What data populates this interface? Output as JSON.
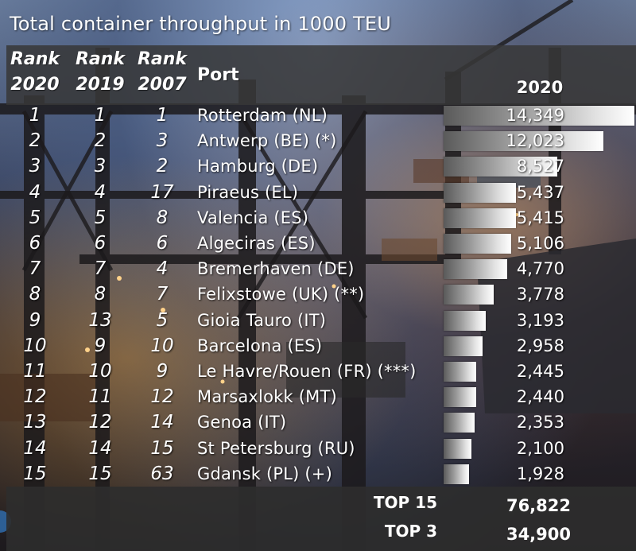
{
  "chart_data": {
    "type": "bar",
    "title": "Total container throughput in 1000 TEU",
    "columns": {
      "rank_2020": "Rank 2020",
      "rank_2019": "Rank 2019",
      "rank_2007": "Rank 2007",
      "port": "Port",
      "value": "2020"
    },
    "rows": [
      {
        "rank_2020": "1",
        "rank_2019": "1",
        "rank_2007": "1",
        "port": "Rotterdam (NL)",
        "value": 14349,
        "value_label": "14,349"
      },
      {
        "rank_2020": "2",
        "rank_2019": "2",
        "rank_2007": "3",
        "port": "Antwerp (BE) (*)",
        "value": 12023,
        "value_label": "12,023"
      },
      {
        "rank_2020": "3",
        "rank_2019": "3",
        "rank_2007": "2",
        "port": "Hamburg (DE)",
        "value": 8527,
        "value_label": "8,527"
      },
      {
        "rank_2020": "4",
        "rank_2019": "4",
        "rank_2007": "17",
        "port": "Piraeus (EL)",
        "value": 5437,
        "value_label": "5,437"
      },
      {
        "rank_2020": "5",
        "rank_2019": "5",
        "rank_2007": "8",
        "port": "Valencia (ES)",
        "value": 5415,
        "value_label": "5,415"
      },
      {
        "rank_2020": "6",
        "rank_2019": "6",
        "rank_2007": "6",
        "port": "Algeciras (ES)",
        "value": 5106,
        "value_label": "5,106"
      },
      {
        "rank_2020": "7",
        "rank_2019": "7",
        "rank_2007": "4",
        "port": "Bremerhaven (DE)",
        "value": 4770,
        "value_label": "4,770"
      },
      {
        "rank_2020": "8",
        "rank_2019": "8",
        "rank_2007": "7",
        "port": "Felixstowe (UK) (**)",
        "value": 3778,
        "value_label": "3,778"
      },
      {
        "rank_2020": "9",
        "rank_2019": "13",
        "rank_2007": "5",
        "port": "Gioia Tauro (IT)",
        "value": 3193,
        "value_label": "3,193"
      },
      {
        "rank_2020": "10",
        "rank_2019": "9",
        "rank_2007": "10",
        "port": "Barcelona (ES)",
        "value": 2958,
        "value_label": "2,958"
      },
      {
        "rank_2020": "11",
        "rank_2019": "10",
        "rank_2007": "9",
        "port": "Le Havre/Rouen (FR) (***)",
        "value": 2445,
        "value_label": "2,445"
      },
      {
        "rank_2020": "12",
        "rank_2019": "11",
        "rank_2007": "12",
        "port": "Marsaxlokk (MT)",
        "value": 2440,
        "value_label": "2,440"
      },
      {
        "rank_2020": "13",
        "rank_2019": "12",
        "rank_2007": "14",
        "port": "Genoa (IT)",
        "value": 2353,
        "value_label": "2,353"
      },
      {
        "rank_2020": "14",
        "rank_2019": "14",
        "rank_2007": "15",
        "port": "St Petersburg (RU)",
        "value": 2100,
        "value_label": "2,100"
      },
      {
        "rank_2020": "15",
        "rank_2019": "15",
        "rank_2007": "63",
        "port": "Gdansk (PL) (+)",
        "value": 1928,
        "value_label": "1,928"
      }
    ],
    "totals": [
      {
        "label": "TOP 15",
        "value": "76,822"
      },
      {
        "label": "TOP 3",
        "value": "34,900"
      }
    ],
    "xlim": [
      0,
      14349
    ],
    "bar_color": "#e2e2e2"
  }
}
